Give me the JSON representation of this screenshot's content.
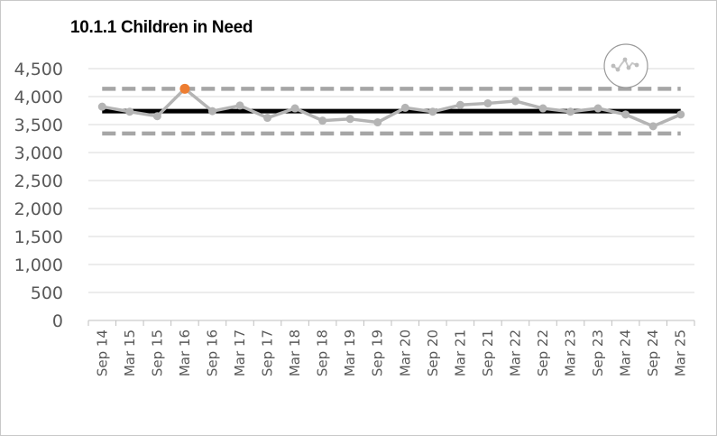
{
  "chart_data": {
    "type": "line",
    "title": "10.1.1 Children in Need",
    "xlabel": "",
    "ylabel": "",
    "categories": [
      "Sep 14",
      "Mar 15",
      "Sep 15",
      "Mar 16",
      "Sep 16",
      "Mar 17",
      "Sep 17",
      "Mar 18",
      "Sep 18",
      "Mar 19",
      "Sep 19",
      "Mar 20",
      "Sep 20",
      "Mar 21",
      "Sep 21",
      "Mar 22",
      "Sep 22",
      "Mar 23",
      "Sep 23",
      "Mar 24",
      "Sep 24",
      "Mar 25"
    ],
    "yticks": [
      "4,500",
      "4,000",
      "3,500",
      "3,000",
      "2,500",
      "2,000",
      "1,500",
      "1,000",
      "500",
      "0"
    ],
    "ylim": [
      0,
      4500
    ],
    "series": [
      {
        "values": [
          3820,
          3730,
          3650,
          4140,
          3740,
          3840,
          3620,
          3790,
          3570,
          3600,
          3540,
          3800,
          3730,
          3850,
          3880,
          3920,
          3790,
          3730,
          3790,
          3680,
          3470,
          3680
        ],
        "color": "#b4b4b4",
        "highlight": {
          "index": 3,
          "color": "#ed7d31"
        }
      }
    ],
    "reference_lines": [
      {
        "value": 3740,
        "style": "solid",
        "color": "#000000"
      },
      {
        "value": 4140,
        "style": "dashed",
        "color": "#a6a6a6"
      },
      {
        "value": 3340,
        "style": "dashed",
        "color": "#a6a6a6"
      }
    ],
    "grid": true,
    "icon": "trend-line-icon"
  }
}
